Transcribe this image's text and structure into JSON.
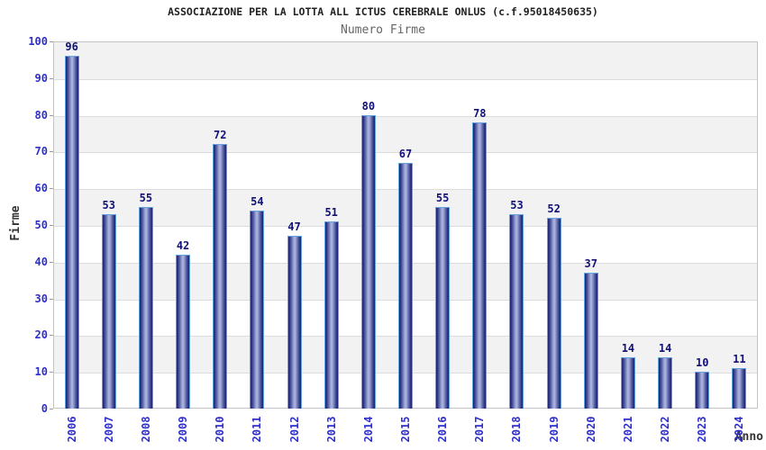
{
  "chart_data": {
    "type": "bar",
    "title": "ASSOCIAZIONE PER LA LOTTA ALL ICTUS CEREBRALE ONLUS (c.f.95018450635)",
    "subtitle": "Numero Firme",
    "xlabel": "Anno",
    "ylabel": "Firme",
    "categories": [
      "2006",
      "2007",
      "2008",
      "2009",
      "2010",
      "2011",
      "2012",
      "2013",
      "2014",
      "2015",
      "2016",
      "2017",
      "2018",
      "2019",
      "2020",
      "2021",
      "2022",
      "2023",
      "2024"
    ],
    "values": [
      96,
      53,
      55,
      42,
      72,
      54,
      47,
      51,
      80,
      67,
      55,
      78,
      53,
      52,
      37,
      14,
      14,
      10,
      11
    ],
    "ylim": [
      0,
      100
    ],
    "ytick_step": 10,
    "grid": true,
    "legend": "none",
    "band_pattern": "alternating gray bands per 10 units, gray at 90-100, 70-80, 50-60, 30-40, 10-20",
    "colors": {
      "bar_edge": "#1b2270",
      "bar_mid_dark": "#39428f",
      "bar_highlight": "#a9b1de",
      "bar_outline": "#64a2de",
      "tick_label": "#2e2ecc",
      "value_label": "#101078",
      "band_gray": "#f2f2f2",
      "gridline": "#dcdcdc",
      "plot_border": "#c3c3c3",
      "title": "#222222",
      "subtitle": "#666666",
      "axis_title": "#333333"
    }
  }
}
